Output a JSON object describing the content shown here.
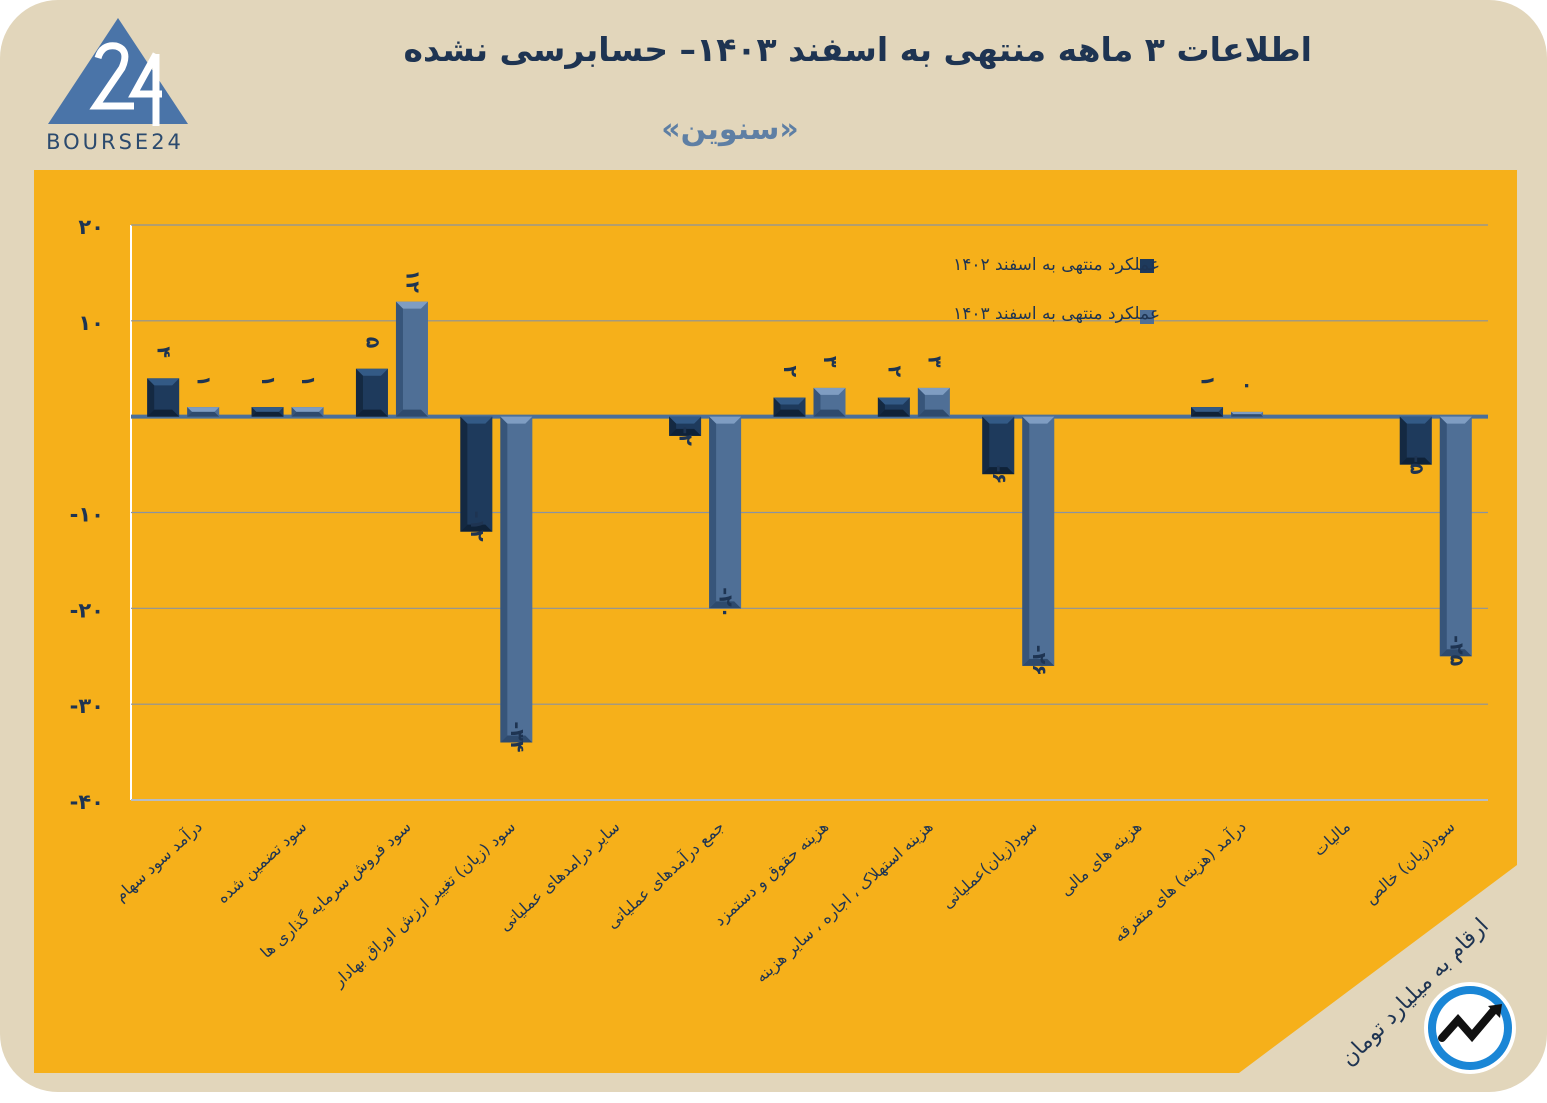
{
  "header": {
    "title": "اطلاعات ۳ ماهه منتهی به اسفند  ۱۴۰۳– حسابرسی نشده",
    "subtitle": "«سنوین»",
    "logo_text": "BOURSE24"
  },
  "footer": {
    "unit_note": "ارقام به میلیارد تومان",
    "icon": "trend-arrow-icon"
  },
  "colors": {
    "background": "#e2d6bb",
    "panel": "#f6b01a",
    "series_1402": "#1e3a5c",
    "series_1403": "#4f6f96",
    "title": "#1e3452",
    "subtitle": "#5e7fa4"
  },
  "chart_data": {
    "type": "bar",
    "ylim": [
      -40,
      20
    ],
    "yticks": [
      20,
      10,
      -10,
      -20,
      -30,
      -40
    ],
    "ytick_labels": [
      "۲۰",
      "۱۰",
      "-۱۰",
      "-۲۰",
      "-۳۰",
      "-۴۰"
    ],
    "grid": true,
    "legend_position": "top-right",
    "categories": [
      "درآمد سود سهام",
      "سود تضمین شده",
      "سود فروش سرمایه گذاری ها",
      "سود (زیان) تغییر ارزش اوراق بهادار",
      "سایر درامدهای عملیاتی",
      "جمع درآمدهای عملیاتی",
      "هزینه حقوق و دستمزد",
      "هزینه استهلاک ، اجاره ، سایر هزینه",
      "سود(زیان)عملیاتی",
      "هزینه های مالی",
      "درآمد (هزینه) های متفرقه",
      "مالیات",
      "سود(زیان) خالص"
    ],
    "series": [
      {
        "name": "عملکرد منتهی به اسفند ۱۴۰۲",
        "values": [
          4,
          1,
          5,
          -12,
          0,
          -2,
          2,
          2,
          -6,
          0,
          1,
          0,
          -5
        ],
        "labels": [
          "۴",
          "۱",
          "۵",
          "-۱۲",
          "",
          "-۲",
          "۲",
          "۲",
          "-۶",
          "",
          "۱",
          "",
          "-۵"
        ]
      },
      {
        "name": "عملکرد منتهی به اسفند ۱۴۰۳",
        "values": [
          1,
          1,
          12,
          -34,
          0,
          -20,
          3,
          3,
          -26,
          0,
          0.5,
          0,
          -25
        ],
        "labels": [
          "۱",
          "۱",
          "۱۲",
          "-۳۴",
          "",
          "-۲۰",
          "۳",
          "۳",
          "-۲۶",
          "",
          "۰",
          "",
          "-۲۵"
        ]
      }
    ]
  }
}
